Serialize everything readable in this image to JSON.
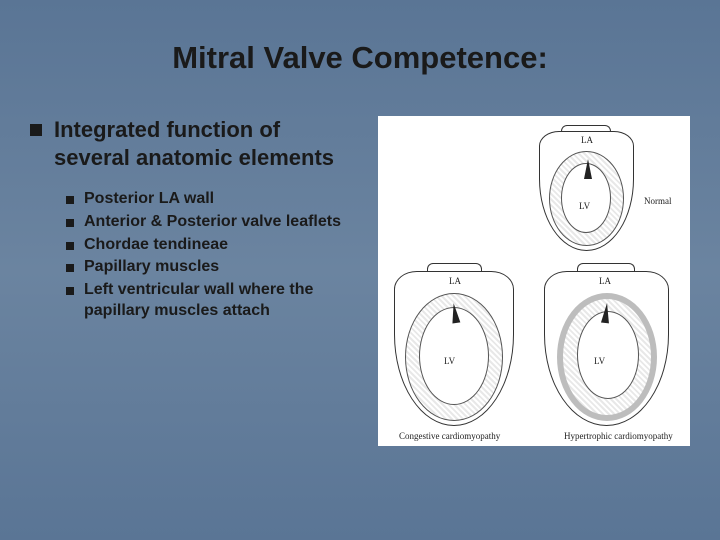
{
  "background_gradient": [
    "#5a7595",
    "#6b84a0",
    "#5a7595"
  ],
  "text_color": "#1a1a1a",
  "bullet_color": "#1a1a1a",
  "title": "Mitral Valve Competence:",
  "title_fontsize": 31,
  "main_point": "Integrated function of several anatomic elements",
  "main_point_fontsize": 22,
  "sub_points": [
    "Posterior LA wall",
    "Anterior & Posterior valve leaflets",
    "Chordae tendineae",
    "Papillary muscles",
    "Left ventricular wall where the papillary muscles attach"
  ],
  "sub_point_fontsize": 16,
  "diagram": {
    "type": "anatomical-line-drawing",
    "background_color": "#ffffff",
    "outline_color": "#333333",
    "hatch_color": "#e8e8e8",
    "panels": [
      {
        "position": "top-right",
        "caption": "Normal",
        "chamber_labels": [
          "LA",
          "LV"
        ]
      },
      {
        "position": "bottom-left",
        "caption": "Congestive cardiomyopathy",
        "chamber_labels": [
          "LA",
          "LV"
        ]
      },
      {
        "position": "bottom-right",
        "caption": "Hypertrophic cardiomyopathy",
        "chamber_labels": [
          "LA",
          "LV"
        ]
      }
    ],
    "label_fontsize": 9
  }
}
